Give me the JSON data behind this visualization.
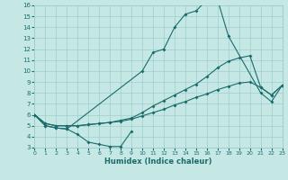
{
  "xlabel": "Humidex (Indice chaleur)",
  "xlim": [
    0,
    23
  ],
  "ylim": [
    3,
    16
  ],
  "xticks": [
    0,
    1,
    2,
    3,
    4,
    5,
    6,
    7,
    8,
    9,
    10,
    11,
    12,
    13,
    14,
    15,
    16,
    17,
    18,
    19,
    20,
    21,
    22,
    23
  ],
  "yticks": [
    3,
    4,
    5,
    6,
    7,
    8,
    9,
    10,
    11,
    12,
    13,
    14,
    15,
    16
  ],
  "bg_color": "#c5e8e5",
  "grid_color": "#9ecece",
  "line_color": "#1a6b6b",
  "curves": [
    {
      "x": [
        0,
        1,
        2,
        3,
        10,
        11,
        12,
        13,
        14,
        15,
        16,
        17,
        18,
        21,
        22,
        23
      ],
      "y": [
        6.0,
        5.0,
        4.8,
        4.7,
        10.0,
        11.7,
        12.0,
        14.0,
        15.2,
        15.5,
        16.5,
        16.5,
        13.2,
        8.0,
        7.2,
        8.7
      ]
    },
    {
      "x": [
        0,
        1,
        2,
        3,
        4,
        5,
        6,
        7,
        8,
        9
      ],
      "y": [
        6.0,
        5.0,
        4.8,
        4.7,
        4.2,
        3.5,
        3.3,
        3.1,
        3.1,
        4.5
      ]
    },
    {
      "x": [
        0,
        1,
        2,
        3,
        4,
        5,
        6,
        7,
        8,
        9,
        10,
        11,
        12,
        13,
        14,
        15,
        16,
        17,
        18,
        19,
        20,
        21,
        22,
        23
      ],
      "y": [
        6.0,
        5.2,
        5.0,
        5.0,
        5.0,
        5.1,
        5.2,
        5.3,
        5.5,
        5.7,
        6.2,
        6.8,
        7.3,
        7.8,
        8.3,
        8.8,
        9.5,
        10.3,
        10.9,
        11.2,
        11.4,
        8.5,
        7.8,
        8.7
      ]
    },
    {
      "x": [
        0,
        1,
        2,
        3,
        4,
        5,
        6,
        7,
        8,
        9,
        10,
        11,
        12,
        13,
        14,
        15,
        16,
        17,
        18,
        19,
        20,
        21,
        22,
        23
      ],
      "y": [
        6.0,
        5.2,
        5.0,
        5.0,
        5.0,
        5.1,
        5.2,
        5.3,
        5.4,
        5.6,
        5.9,
        6.2,
        6.5,
        6.9,
        7.2,
        7.6,
        7.9,
        8.3,
        8.6,
        8.9,
        9.0,
        8.5,
        7.8,
        8.7
      ]
    }
  ]
}
